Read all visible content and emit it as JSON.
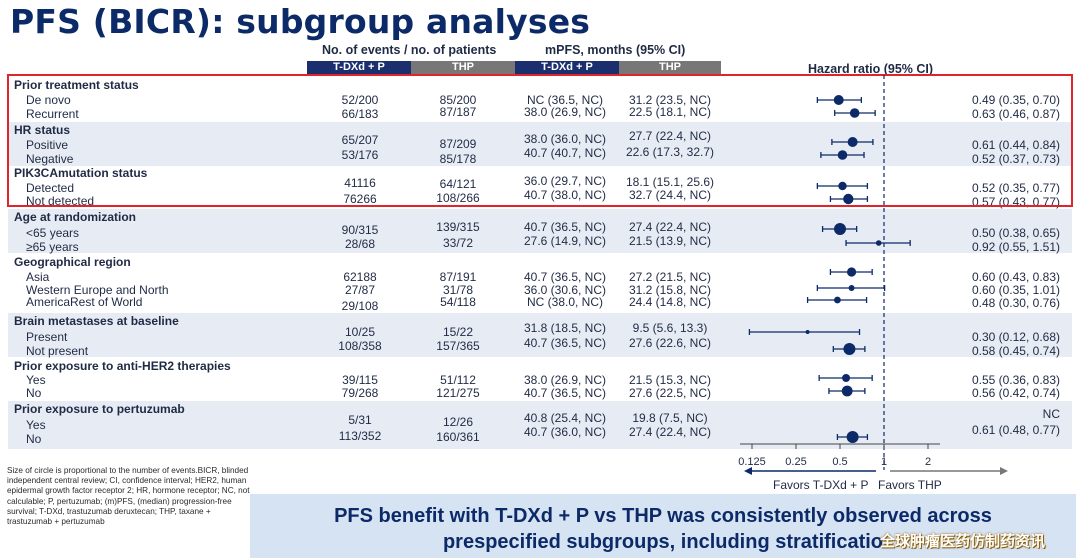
{
  "title": "PFS (BICR): subgroup analyses",
  "headers": {
    "events": "No. of events / no. of patients",
    "mpfs": "mPFS, months (95% CI)",
    "hr": "Hazard ratio (95% CI)",
    "tdxd": "T-DXd + P",
    "thp": "THP"
  },
  "groups": [
    {
      "label": "Prior treatment status"
    },
    {
      "label": "HR status"
    },
    {
      "label": "PIK3CAmutation status"
    },
    {
      "label": "Age at randomization"
    },
    {
      "label": "Geographical region"
    },
    {
      "label": "Brain metastases at baseline"
    },
    {
      "label": "Prior exposure to anti-HER2 therapies"
    },
    {
      "label": "Prior exposure to pertuzumab"
    }
  ],
  "rows": [
    {
      "label": "De novo",
      "ev_tdxd": "52/200",
      "ev_thp": "85/200",
      "mpfs_tdxd": "NC (36.5, NC)",
      "mpfs_thp": "31.2 (23.5, NC)",
      "hr_text": "0.49 (0.35, 0.70)",
      "hr": 0.49,
      "lo": 0.35,
      "hi": 0.7,
      "size": 5
    },
    {
      "label": "Recurrent",
      "ev_tdxd": "66/183",
      "ev_thp": "87/187",
      "mpfs_tdxd": "38.0 (26.9, NC)",
      "mpfs_thp": "22.5 (18.1, NC)",
      "hr_text": "0.63 (0.46, 0.87)",
      "hr": 0.63,
      "lo": 0.46,
      "hi": 0.87,
      "size": 4.8
    },
    {
      "label": "Positive",
      "ev_tdxd": "65/207",
      "ev_thp": "87/209",
      "mpfs_tdxd": "38.0 (36.0, NC)",
      "mpfs_thp": "27.7 (22.4, NC)",
      "hr_text": "0.61 (0.44, 0.84)",
      "hr": 0.61,
      "lo": 0.44,
      "hi": 0.84,
      "size": 5
    },
    {
      "label": "Negative",
      "ev_tdxd": "53/176",
      "ev_thp": "85/178",
      "mpfs_tdxd": "40.7 (40.7, NC)",
      "mpfs_thp": "22.6 (17.3, 32.7)",
      "hr_text": "0.52 (0.37, 0.73)",
      "hr": 0.52,
      "lo": 0.37,
      "hi": 0.73,
      "size": 4.8
    },
    {
      "label": "Detected",
      "ev_tdxd": "41116",
      "ev_thp": "64/121",
      "mpfs_tdxd": "36.0 (29.7, NC)",
      "mpfs_thp": "18.1 (15.1, 25.6)",
      "hr_text": "0.52 (0.35, 0.77)",
      "hr": 0.52,
      "lo": 0.35,
      "hi": 0.77,
      "size": 4.2
    },
    {
      "label": "Not detected",
      "ev_tdxd": "76266",
      "ev_thp": "108/266",
      "mpfs_tdxd": "40.7 (38.0, NC)",
      "mpfs_thp": "32.7 (24.4, NC)",
      "hr_text": "0.57 (0.43, 0.77)",
      "hr": 0.57,
      "lo": 0.43,
      "hi": 0.77,
      "size": 5.2
    },
    {
      "label": "<65 years",
      "ev_tdxd": "90/315",
      "ev_thp": "139/315",
      "mpfs_tdxd": "40.7 (36.5, NC)",
      "mpfs_thp": "27.4 (22.4, NC)",
      "hr_text": "0.50 (0.38, 0.65)",
      "hr": 0.5,
      "lo": 0.38,
      "hi": 0.65,
      "size": 6
    },
    {
      "label": "≥65 years",
      "ev_tdxd": "28/68",
      "ev_thp": "33/72",
      "mpfs_tdxd": "27.6 (14.9, NC)",
      "mpfs_thp": "21.5 (13.9, NC)",
      "hr_text": "0.92 (0.55, 1.51)",
      "hr": 0.92,
      "lo": 0.55,
      "hi": 1.51,
      "size": 2.8
    },
    {
      "label": "Asia",
      "ev_tdxd": "62188",
      "ev_thp": "87/191",
      "mpfs_tdxd": "40.7 (36.5, NC)",
      "mpfs_thp": "27.2 (21.5, NC)",
      "hr_text": "0.60 (0.43, 0.83)",
      "hr": 0.6,
      "lo": 0.43,
      "hi": 0.83,
      "size": 4.6
    },
    {
      "label": "Western Europe and North",
      "ev_tdxd": "27/87",
      "ev_thp": "31/78",
      "mpfs_tdxd": "36.0 (30.6, NC)",
      "mpfs_thp": "31.2 (15.8, NC)",
      "hr_text": "0.60 (0.35, 1.01)",
      "hr": 0.6,
      "lo": 0.35,
      "hi": 1.01,
      "size": 3
    },
    {
      "label": "AmericaRest of World",
      "ev_tdxd": "29/108",
      "ev_thp": "54/118",
      "mpfs_tdxd": "NC (38.0, NC)",
      "mpfs_thp": "24.4 (14.8, NC)",
      "hr_text": "0.48 (0.30, 0.76)",
      "hr": 0.48,
      "lo": 0.3,
      "hi": 0.76,
      "size": 3.4
    },
    {
      "label": "Present",
      "ev_tdxd": "10/25",
      "ev_thp": "15/22",
      "mpfs_tdxd": "31.8 (18.5, NC)",
      "mpfs_thp": "9.5 (5.6, 13.3)",
      "hr_text": "0.30 (0.12, 0.68)",
      "hr": 0.3,
      "lo": 0.12,
      "hi": 0.68,
      "size": 2
    },
    {
      "label": "Not present",
      "ev_tdxd": "108/358",
      "ev_thp": "157/365",
      "mpfs_tdxd": "40.7 (36.5, NC)",
      "mpfs_thp": "27.6 (22.6, NC)",
      "hr_text": "0.58 (0.45, 0.74)",
      "hr": 0.58,
      "lo": 0.45,
      "hi": 0.74,
      "size": 6
    },
    {
      "label": "Yes",
      "ev_tdxd": "39/115",
      "ev_thp": "51/112",
      "mpfs_tdxd": "38.0 (26.9, NC)",
      "mpfs_thp": "21.5 (15.3, NC)",
      "hr_text": "0.55 (0.36, 0.83)",
      "hr": 0.55,
      "lo": 0.36,
      "hi": 0.83,
      "size": 4
    },
    {
      "label": "No",
      "ev_tdxd": "79/268",
      "ev_thp": "121/275",
      "mpfs_tdxd": "40.7 (36.5, NC)",
      "mpfs_thp": "27.6 (22.5, NC)",
      "hr_text": "0.56 (0.42, 0.74)",
      "hr": 0.56,
      "lo": 0.42,
      "hi": 0.74,
      "size": 5.4
    },
    {
      "label": "Yes",
      "ev_tdxd": "5/31",
      "ev_thp": "12/26",
      "mpfs_tdxd": "40.8 (25.4, NC)",
      "mpfs_thp": "19.8 (7.5, NC)",
      "hr_text": "NC",
      "hr": null,
      "lo": null,
      "hi": null,
      "size": 0
    },
    {
      "label": "No",
      "ev_tdxd": "113/352",
      "ev_thp": "160/361",
      "mpfs_tdxd": "40.7 (36.0, NC)",
      "mpfs_thp": "27.4 (22.4, NC)",
      "hr_text": "0.61 (0.48, 0.77)",
      "hr": 0.61,
      "lo": 0.48,
      "hi": 0.77,
      "size": 6
    }
  ],
  "axis": {
    "ticks": [
      {
        "value": 0.125,
        "label": "0.125"
      },
      {
        "value": 0.25,
        "label": "0.25"
      },
      {
        "value": 0.5,
        "label": "0.5"
      },
      {
        "value": 1,
        "label": "1"
      },
      {
        "value": 2,
        "label": "2"
      }
    ],
    "scale": "log2",
    "reference": 1,
    "favors_left": "Favors T-DXd + P",
    "favors_right": "Favors THP"
  },
  "footnote": "Size of circle is proportional to the number of events.BICR, blinded independent central review; CI, confidence interval; HER2, human epidermal growth factor receptor 2; HR, hormone receptor; NC, not calculable; P, pertuzumab; (m)PFS, (median) progression-free survival; T-DXd, trastuzumab deruxtecan; THP, taxane + trastuzumab + pertuzumab",
  "banner": {
    "line1": "PFS benefit with T-DXd + P vs THP was consistently observed across",
    "line2": "prespecified subgroups, including stratificatio"
  },
  "watermark": "全球肿瘤医药仿制药资讯",
  "colors": {
    "navy": "#0c2a67",
    "tdxd_bar": "#1b2f6e",
    "thp_bar": "#777777",
    "band": "#e7ecf4",
    "highlight_box": "#e0242b"
  }
}
